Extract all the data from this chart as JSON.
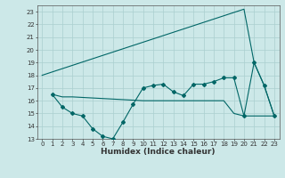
{
  "xlabel": "Humidex (Indice chaleur)",
  "bg_color": "#cce8e8",
  "grid_color": "#aacfcf",
  "line_color": "#006666",
  "xlim": [
    -0.5,
    23.5
  ],
  "ylim": [
    13,
    23.5
  ],
  "yticks": [
    13,
    14,
    15,
    16,
    17,
    18,
    19,
    20,
    21,
    22,
    23
  ],
  "xticks": [
    0,
    1,
    2,
    3,
    4,
    5,
    6,
    7,
    8,
    9,
    10,
    11,
    12,
    13,
    14,
    15,
    16,
    17,
    18,
    19,
    20,
    21,
    22,
    23
  ],
  "series1_x": [
    0,
    20,
    21,
    22,
    23
  ],
  "series1_y": [
    18.0,
    23.2,
    19.0,
    17.2,
    14.8
  ],
  "series2_x": [
    1,
    2,
    3,
    4,
    5,
    6,
    7,
    8,
    9,
    10,
    11,
    12,
    13,
    14,
    15,
    16,
    17,
    18,
    19,
    20,
    21,
    22,
    23
  ],
  "series2_y": [
    16.5,
    15.5,
    15.0,
    14.8,
    13.8,
    13.2,
    13.0,
    14.3,
    15.7,
    17.0,
    17.2,
    17.3,
    16.7,
    16.4,
    17.3,
    17.3,
    17.5,
    17.8,
    17.8,
    14.8,
    19.0,
    17.2,
    14.8
  ],
  "series3_x": [
    1,
    2,
    3,
    10,
    11,
    12,
    13,
    14,
    15,
    16,
    17,
    18,
    19,
    20,
    21,
    22,
    23
  ],
  "series3_y": [
    16.5,
    16.3,
    16.3,
    16.0,
    16.0,
    16.0,
    16.0,
    16.0,
    16.0,
    16.0,
    16.0,
    16.0,
    15.0,
    14.8,
    14.8,
    14.8,
    14.8
  ]
}
